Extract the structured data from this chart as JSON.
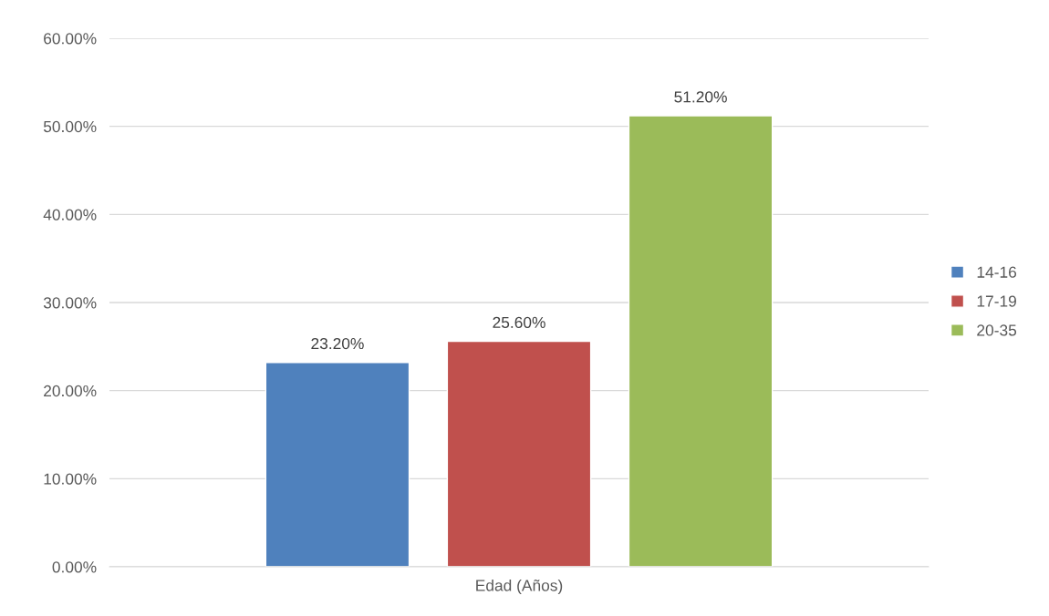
{
  "chart_data": {
    "type": "bar",
    "categories": [
      "Edad (Años)"
    ],
    "series": [
      {
        "name": "14-16",
        "color": "#4f81bd",
        "values": [
          23.2
        ],
        "value_labels": [
          "23.20%"
        ]
      },
      {
        "name": "17-19",
        "color": "#c0504d",
        "values": [
          25.6
        ],
        "value_labels": [
          "25.60%"
        ]
      },
      {
        "name": "20-35",
        "color": "#9bbb59",
        "values": [
          51.2
        ],
        "value_labels": [
          "51.20%"
        ]
      }
    ],
    "ylim": [
      0,
      60
    ],
    "yticks": [
      {
        "value": 0,
        "label": "0.00%"
      },
      {
        "value": 10,
        "label": "10.00%"
      },
      {
        "value": 20,
        "label": "20.00%"
      },
      {
        "value": 30,
        "label": "30.00%"
      },
      {
        "value": 40,
        "label": "40.00%"
      },
      {
        "value": 50,
        "label": "50.00%"
      },
      {
        "value": 60,
        "label": "60.00%"
      }
    ],
    "grid": "y",
    "legend": "right"
  }
}
